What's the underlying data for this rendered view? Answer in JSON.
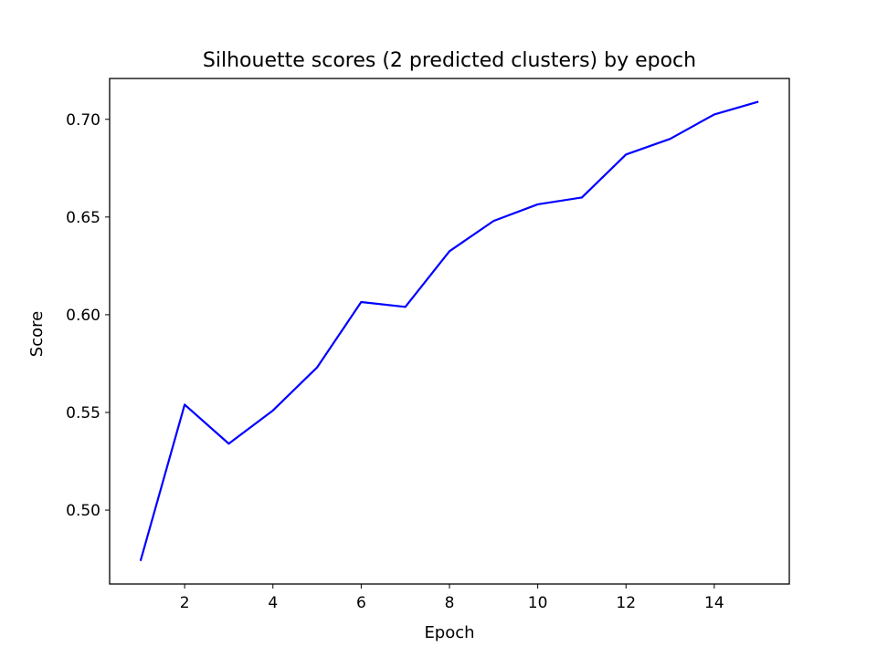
{
  "chart_data": {
    "type": "line",
    "title": "Silhouette scores (2 predicted clusters) by epoch",
    "xlabel": "Epoch",
    "ylabel": "Score",
    "x": [
      1,
      2,
      3,
      4,
      5,
      6,
      7,
      8,
      9,
      10,
      11,
      12,
      13,
      14,
      15
    ],
    "series": [
      {
        "color": "#0000ff",
        "values": [
          0.474,
          0.554,
          0.534,
          0.551,
          0.573,
          0.6065,
          0.604,
          0.6325,
          0.648,
          0.6565,
          0.66,
          0.682,
          0.69,
          0.7025,
          0.709
        ]
      }
    ],
    "xlim": [
      0.3,
      15.7
    ],
    "ylim": [
      0.4622,
      0.7209
    ],
    "xticks": [
      2,
      4,
      6,
      8,
      10,
      12,
      14
    ],
    "xtick_labels": [
      "2",
      "4",
      "6",
      "8",
      "10",
      "12",
      "14"
    ],
    "yticks": [
      0.5,
      0.55,
      0.6,
      0.65,
      0.7
    ],
    "ytick_labels": [
      "0.50",
      "0.55",
      "0.60",
      "0.65",
      "0.70"
    ],
    "grid": false,
    "legend": "none"
  }
}
